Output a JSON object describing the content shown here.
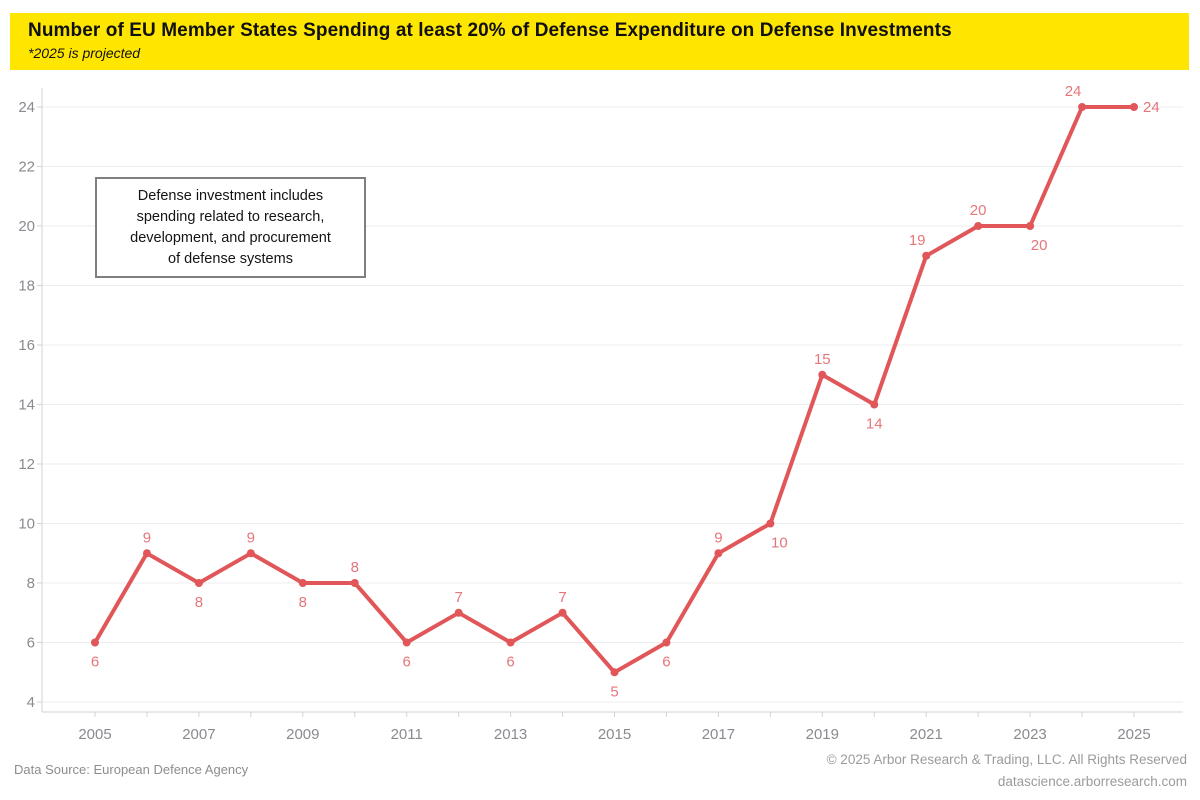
{
  "header": {
    "title": "Number of EU Member States Spending at least 20% of Defense Expenditure on Defense Investments",
    "subtitle": "*2025 is projected",
    "background_color": "#FFE600"
  },
  "annotation": {
    "text": "Defense investment includes\nspending related to research,\ndevelopment, and procurement\nof defense systems"
  },
  "chart_data": {
    "type": "line",
    "x": [
      2005,
      2006,
      2007,
      2008,
      2009,
      2010,
      2011,
      2012,
      2013,
      2014,
      2015,
      2016,
      2017,
      2018,
      2019,
      2020,
      2021,
      2022,
      2023,
      2024,
      2025
    ],
    "values": [
      6,
      9,
      8,
      9,
      8,
      8,
      6,
      7,
      6,
      7,
      5,
      6,
      9,
      10,
      15,
      14,
      19,
      20,
      20,
      24,
      24
    ],
    "point_labels": [
      "6",
      "9",
      "8",
      "9",
      "8",
      "8",
      "6",
      "7",
      "6",
      "7",
      "5",
      "6",
      "9",
      "10",
      "15",
      "14",
      "19",
      "20",
      "20",
      "24",
      "24"
    ],
    "label_positions": [
      "below",
      "above",
      "below",
      "above",
      "below",
      "above",
      "below",
      "above",
      "below",
      "above",
      "below",
      "below",
      "above",
      "below-right",
      "above",
      "below",
      "above-left",
      "above",
      "below-right",
      "above-left",
      "right"
    ],
    "yticks": [
      4,
      6,
      8,
      10,
      12,
      14,
      16,
      18,
      20,
      22,
      24
    ],
    "xtick_labels": [
      "2005",
      "2007",
      "2009",
      "2011",
      "2013",
      "2015",
      "2017",
      "2019",
      "2021",
      "2023",
      "2025"
    ],
    "ylim": [
      3.6,
      24.6
    ],
    "xlim": [
      2005,
      2025
    ],
    "grid": true,
    "legend": "none",
    "colors": {
      "line": "#E15759",
      "point_label": "#E5767C",
      "grid": "#EDEDEF",
      "axis": "#D3D3D7",
      "axis_text": "#8A8A90"
    }
  },
  "footer": {
    "source": "Data Source: European Defence Agency",
    "copyright": "© 2025 Arbor Research & Trading, LLC. All Rights Reserved",
    "website": "datascience.arborresearch.com"
  }
}
